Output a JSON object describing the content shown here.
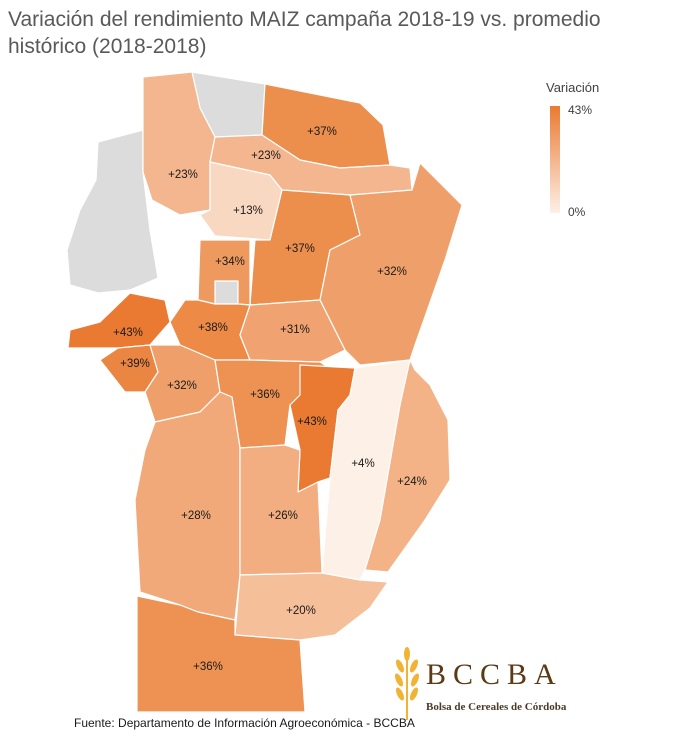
{
  "title": "Variación del rendimiento MAIZ campaña 2018-19 vs. promedio histórico (2018-2018)",
  "legend": {
    "title": "Variación",
    "max_label": "43%",
    "min_label": "0%",
    "max_color": "#ea7a32",
    "min_color": "#fdf0e6"
  },
  "regions": [
    {
      "label": "+37%",
      "value": 37,
      "color": "#ec8e4c"
    },
    {
      "label": "+23%",
      "value": 23,
      "color": "#f4b68e"
    },
    {
      "label": "+23%",
      "value": 23,
      "color": "#f4b68e"
    },
    {
      "label": "+13%",
      "value": 13,
      "color": "#f9d8c2"
    },
    {
      "label": "+37%",
      "value": 37,
      "color": "#ec8e4c"
    },
    {
      "label": "+32%",
      "value": 32,
      "color": "#efa06a"
    },
    {
      "label": "+34%",
      "value": 34,
      "color": "#ee9a5f"
    },
    {
      "label": "+43%",
      "value": 43,
      "color": "#ea7a32"
    },
    {
      "label": "+38%",
      "value": 38,
      "color": "#ec8a46"
    },
    {
      "label": "+31%",
      "value": 31,
      "color": "#f0a370"
    },
    {
      "label": "+39%",
      "value": 39,
      "color": "#eb8642"
    },
    {
      "label": "+32%",
      "value": 32,
      "color": "#efa06a"
    },
    {
      "label": "+36%",
      "value": 36,
      "color": "#ed9252"
    },
    {
      "label": "+43%",
      "value": 43,
      "color": "#ea7a32"
    },
    {
      "label": "+4%",
      "value": 4,
      "color": "#fdf0e6"
    },
    {
      "label": "+24%",
      "value": 24,
      "color": "#f3b387"
    },
    {
      "label": "+28%",
      "value": 28,
      "color": "#f1a979"
    },
    {
      "label": "+26%",
      "value": 26,
      "color": "#f2ad80"
    },
    {
      "label": "+20%",
      "value": 20,
      "color": "#f5bf9a"
    },
    {
      "label": "+36%",
      "value": 36,
      "color": "#ed9252"
    }
  ],
  "no_data_color": "#dcdcdc",
  "logo": {
    "name": "BCCBA",
    "subtitle": "Bolsa de Cereales de Córdoba",
    "color": "#f2b233"
  },
  "source": "Fuente: Departamento de Información Agroeconómica - BCCBA"
}
